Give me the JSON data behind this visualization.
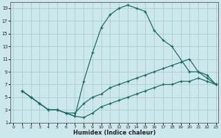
{
  "xlabel": "Humidex (Indice chaleur)",
  "bg_color": "#cde8ed",
  "grid_color": "#aacccc",
  "line_color": "#1a6b60",
  "xlim": [
    -0.3,
    23.3
  ],
  "ylim": [
    1,
    20
  ],
  "xticks": [
    0,
    1,
    2,
    3,
    4,
    5,
    6,
    7,
    8,
    9,
    10,
    11,
    12,
    13,
    14,
    15,
    16,
    17,
    18,
    19,
    20,
    21,
    22,
    23
  ],
  "yticks": [
    1,
    3,
    5,
    7,
    9,
    11,
    13,
    15,
    17,
    19
  ],
  "line1_x": [
    1,
    2,
    3,
    4,
    5,
    6,
    7,
    8,
    9,
    10,
    11,
    12,
    13,
    14,
    15,
    16,
    17,
    18,
    20,
    21,
    22,
    23
  ],
  "line1_y": [
    6,
    5,
    4,
    3,
    3,
    2.5,
    2,
    7.5,
    12,
    16,
    18,
    19,
    19.5,
    19,
    18.5,
    15.5,
    14,
    13,
    9,
    9,
    8,
    7
  ],
  "line2_x": [
    1,
    2,
    3,
    4,
    5,
    6,
    7,
    8,
    9,
    10,
    11,
    12,
    13,
    14,
    15,
    16,
    17,
    18,
    19,
    20,
    21,
    22,
    23
  ],
  "line2_y": [
    6,
    5,
    4,
    3,
    3,
    2.5,
    2.5,
    4,
    5,
    5.5,
    6.5,
    7,
    7.5,
    8,
    8.5,
    9,
    9.5,
    10,
    10.5,
    11,
    9,
    8.5,
    7
  ],
  "line3_x": [
    1,
    2,
    3,
    4,
    5,
    6,
    7,
    8,
    9,
    10,
    11,
    12,
    13,
    14,
    15,
    16,
    17,
    18,
    19,
    20,
    21,
    22,
    23
  ],
  "line3_y": [
    6,
    5,
    4,
    3,
    3,
    2.5,
    2,
    1.8,
    2.5,
    3.5,
    4,
    4.5,
    5,
    5.5,
    6,
    6.5,
    7,
    7,
    7.5,
    7.5,
    8,
    7.5,
    7
  ]
}
